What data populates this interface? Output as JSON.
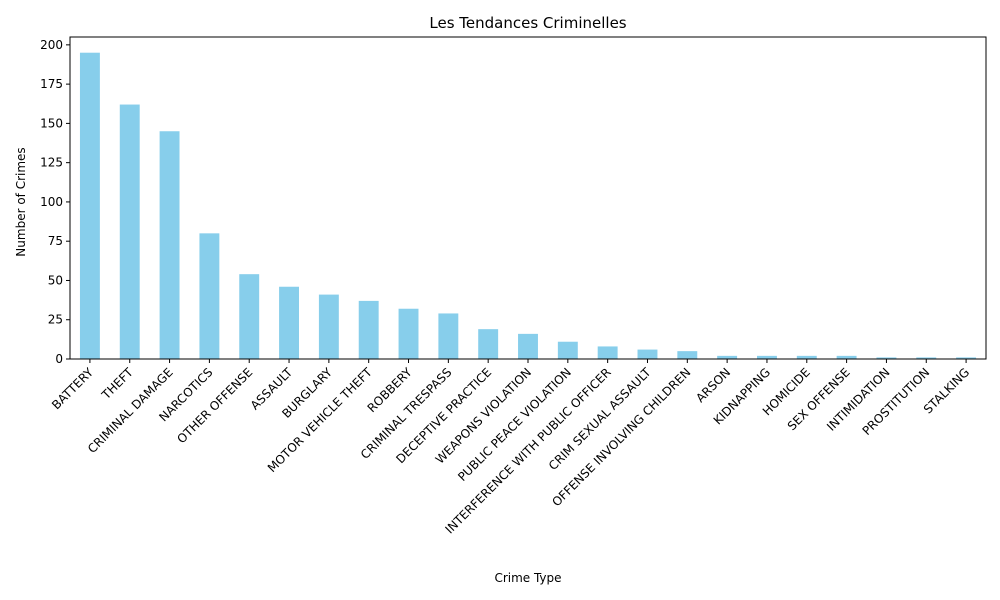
{
  "chart_data": {
    "type": "bar",
    "title": "Les Tendances Criminelles",
    "xlabel": "Crime Type",
    "ylabel": "Number of Crimes",
    "ylim": [
      0,
      205
    ],
    "yticks": [
      0,
      25,
      50,
      75,
      100,
      125,
      150,
      175,
      200
    ],
    "bar_color": "#87ceeb",
    "grid": false,
    "categories": [
      "BATTERY",
      "THEFT",
      "CRIMINAL DAMAGE",
      "NARCOTICS",
      "OTHER OFFENSE",
      "ASSAULT",
      "BURGLARY",
      "MOTOR VEHICLE THEFT",
      "ROBBERY",
      "CRIMINAL TRESPASS",
      "DECEPTIVE PRACTICE",
      "WEAPONS VIOLATION",
      "PUBLIC PEACE VIOLATION",
      "INTERFERENCE WITH PUBLIC OFFICER",
      "CRIM SEXUAL ASSAULT",
      "OFFENSE INVOLVING CHILDREN",
      "ARSON",
      "KIDNAPPING",
      "HOMICIDE",
      "SEX OFFENSE",
      "INTIMIDATION",
      "PROSTITUTION",
      "STALKING"
    ],
    "values": [
      195,
      162,
      145,
      80,
      54,
      46,
      41,
      37,
      32,
      29,
      19,
      16,
      11,
      8,
      6,
      5,
      2,
      2,
      2,
      2,
      1,
      1,
      1
    ]
  }
}
